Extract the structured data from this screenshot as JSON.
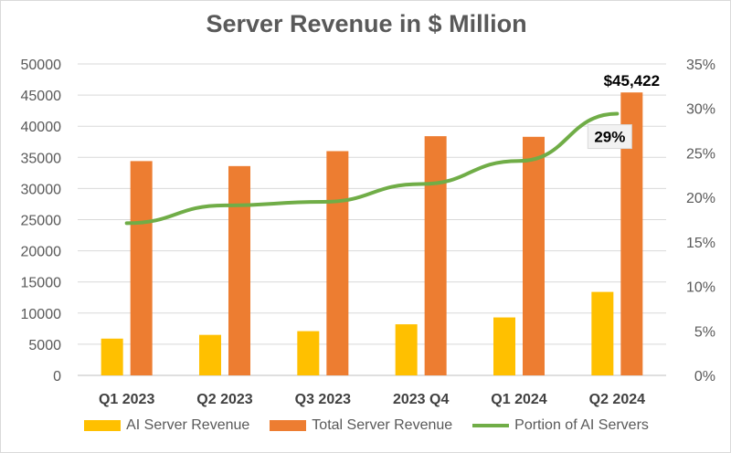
{
  "chart_data": {
    "type": "bar",
    "title": "Server Revenue in $ Million",
    "categories": [
      "Q1 2023",
      "Q2 2023",
      "Q3 2023",
      "2023 Q4",
      "Q1 2024",
      "Q2 2024"
    ],
    "ylim": [
      0,
      50000
    ],
    "yticks": [
      0,
      5000,
      10000,
      15000,
      20000,
      25000,
      30000,
      35000,
      40000,
      45000,
      50000
    ],
    "y2lim": [
      0,
      35
    ],
    "y2ticks": [
      "0%",
      "5%",
      "10%",
      "15%",
      "20%",
      "25%",
      "30%",
      "35%"
    ],
    "series": [
      {
        "name": "AI Server Revenue",
        "type": "bar",
        "axis": "left",
        "color": "#FFC000",
        "values": [
          5900,
          6500,
          7100,
          8200,
          9300,
          13400
        ]
      },
      {
        "name": "Total Server Revenue",
        "type": "bar",
        "axis": "left",
        "color": "#ED7D31",
        "values": [
          34400,
          33600,
          36000,
          38400,
          38300,
          45422
        ]
      },
      {
        "name": "Portion of AI Servers",
        "type": "line",
        "axis": "right",
        "color": "#70AD47",
        "values": [
          17.1,
          19.1,
          19.5,
          21.5,
          24.1,
          29.4
        ]
      }
    ],
    "annotations": [
      {
        "series": "Total Server Revenue",
        "index": 5,
        "text": "$45,422"
      },
      {
        "series": "Portion of AI Servers",
        "index": 5,
        "text": "29%"
      }
    ],
    "grid": true,
    "legend_position": "bottom"
  }
}
